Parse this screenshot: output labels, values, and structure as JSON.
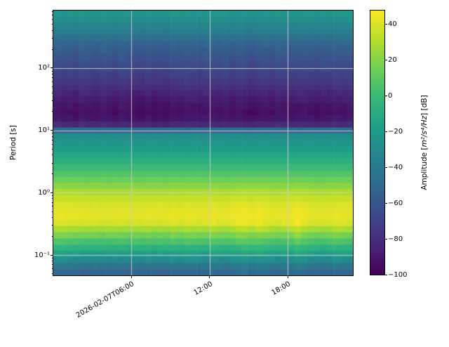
{
  "figure": {
    "background": "#ffffff",
    "title": ""
  },
  "y_axis": {
    "label": "Period [s]",
    "scale": "log",
    "log10_range": [
      -1.327,
      2.924
    ],
    "ticks": [
      {
        "log10": 2,
        "label": "10²"
      },
      {
        "log10": 1,
        "label": "10¹"
      },
      {
        "log10": 0,
        "label": "10⁰"
      },
      {
        "log10": -1,
        "label": "10⁻¹"
      }
    ]
  },
  "x_axis": {
    "label": "",
    "range_hours": [
      0,
      23
    ],
    "date": "2026-02-07",
    "ticks": [
      {
        "hour": 6,
        "label": "2026-02-07T06:00"
      },
      {
        "hour": 12,
        "label": "12:00"
      },
      {
        "hour": 18,
        "label": "18:00"
      }
    ]
  },
  "colorbar": {
    "label_prefix": "Amplitude [",
    "label_math": "m²/s⁴/Hz",
    "label_suffix": "] [dB]",
    "vmin": -100,
    "vmax": 47.5,
    "ticks": [
      40,
      20,
      0,
      -20,
      -40,
      -60,
      -80,
      -100
    ],
    "colormap": "viridis"
  },
  "chart_data": {
    "type": "heatmap",
    "subtype": "spectrogram",
    "title": "",
    "xlabel": "",
    "ylabel": "Period [s]",
    "value_units": "dB rel. m²/s⁴/Hz",
    "time_start": "2026-02-07T00:00",
    "time_end": "2026-02-07T23:00",
    "col_duration_hours": 0.5,
    "period_range_s": [
      0.047,
      840
    ],
    "grid": true,
    "vmin": -100,
    "vmax": 47.5,
    "colormap_stops": [
      "#440154",
      "#482878",
      "#3e4989",
      "#31688e",
      "#26828e",
      "#1f9e89",
      "#35b779",
      "#6ece58",
      "#b5de2b",
      "#fde725"
    ],
    "period_profile": {
      "log10_period": [
        2.93,
        2.8,
        2.7,
        2.6,
        2.5,
        2.4,
        2.3,
        2.2,
        2.1,
        2.0,
        1.9,
        1.8,
        1.7,
        1.6,
        1.5,
        1.4,
        1.3,
        1.2,
        1.1,
        1.03,
        1.0,
        0.96,
        0.9,
        0.8,
        0.7,
        0.6,
        0.5,
        0.4,
        0.3,
        0.2,
        0.1,
        0.0,
        -0.1,
        -0.2,
        -0.3,
        -0.45,
        -0.55,
        -0.65,
        -0.75,
        -0.85,
        -0.95,
        -1.0,
        -1.1,
        -1.2,
        -1.33
      ],
      "amplitude_db": [
        -21,
        -26,
        -31,
        -37,
        -44,
        -51,
        -56,
        -60,
        -64,
        -67,
        -71,
        -75,
        -79,
        -84,
        -88,
        -91,
        -93,
        -91,
        -83,
        -72,
        -50,
        -36,
        -28,
        -24,
        -19,
        -13,
        -7,
        0,
        7,
        14,
        21,
        30,
        35,
        39,
        41,
        42,
        31,
        19,
        8,
        -4,
        -14,
        -20,
        -33,
        -46,
        -58
      ]
    },
    "col_offsets_short_db": [
      2,
      3,
      2,
      1,
      1,
      0,
      1,
      0,
      0,
      1,
      0,
      0,
      1,
      0,
      1,
      0,
      1,
      0,
      2,
      1,
      3,
      2,
      1,
      1,
      4,
      2,
      1,
      3,
      5,
      6,
      3,
      6,
      4,
      2,
      1,
      2,
      3,
      7,
      4,
      1,
      0,
      0,
      1,
      3,
      2,
      1
    ],
    "col_offsets_long_db": [
      1,
      -1,
      0,
      -2,
      1,
      0,
      -1,
      1,
      0,
      -2,
      1,
      -1,
      -2,
      -3,
      -1,
      -3,
      -2,
      -3,
      0,
      -1,
      1,
      0,
      -1,
      1,
      0,
      -1,
      1,
      -2,
      0,
      -1,
      -3,
      -1,
      0,
      -2,
      1,
      0,
      -1,
      0,
      1,
      -1,
      -2,
      0,
      -1,
      1,
      0,
      1
    ],
    "grid_color": "#cccccc"
  }
}
